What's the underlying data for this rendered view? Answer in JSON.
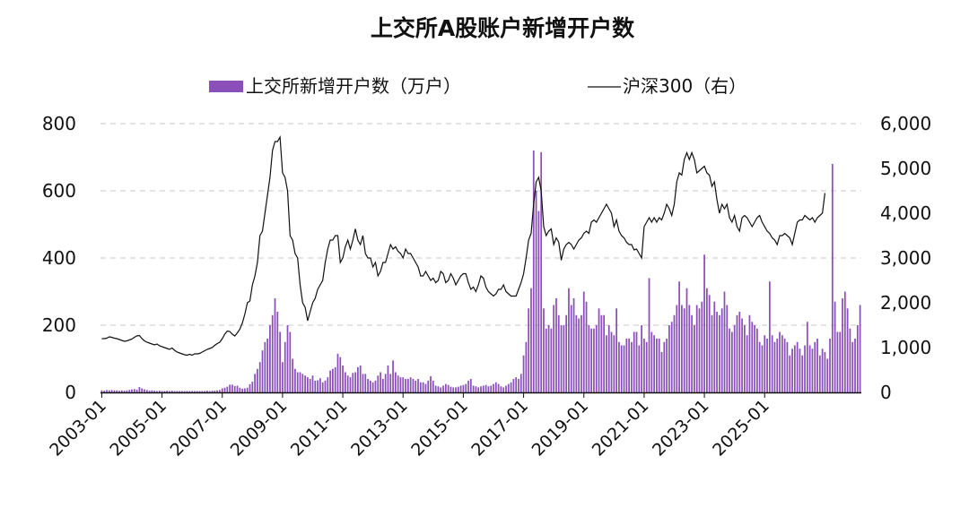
{
  "chart_data": {
    "type": "bar+line",
    "title": "上交所A股账户新增开户数",
    "bar_color": "#8a4fb8",
    "line_color": "#111111",
    "series": [
      {
        "name": "上交所新增开户数（万户）",
        "axis": "left",
        "type": "bar",
        "start": "2003-01",
        "values": [
          6,
          5,
          7,
          6,
          7,
          6,
          6,
          5,
          6,
          5,
          6,
          7,
          9,
          10,
          8,
          16,
          12,
          9,
          7,
          5,
          6,
          5,
          4,
          5,
          4,
          4,
          5,
          4,
          5,
          4,
          4,
          4,
          4,
          4,
          4,
          4,
          4,
          4,
          4,
          4,
          4,
          4,
          5,
          4,
          5,
          5,
          6,
          7,
          12,
          14,
          17,
          23,
          23,
          19,
          20,
          14,
          11,
          12,
          14,
          24,
          32,
          55,
          70,
          90,
          125,
          150,
          160,
          200,
          230,
          280,
          240,
          180,
          90,
          150,
          200,
          180,
          100,
          70,
          60,
          60,
          55,
          50,
          45,
          40,
          50,
          35,
          36,
          42,
          30,
          35,
          45,
          65,
          70,
          75,
          115,
          105,
          80,
          60,
          50,
          45,
          58,
          60,
          75,
          80,
          55,
          55,
          40,
          35,
          30,
          35,
          50,
          60,
          40,
          55,
          80,
          55,
          95,
          60,
          50,
          45,
          45,
          40,
          40,
          45,
          40,
          35,
          40,
          30,
          30,
          25,
          35,
          48,
          35,
          20,
          18,
          15,
          20,
          25,
          22,
          17,
          15,
          15,
          17,
          20,
          22,
          25,
          35,
          40,
          20,
          18,
          15,
          18,
          20,
          22,
          18,
          20,
          25,
          30,
          25,
          18,
          15,
          20,
          25,
          30,
          40,
          45,
          40,
          55,
          110,
          150,
          250,
          310,
          720,
          600,
          540,
          715,
          250,
          190,
          200,
          190,
          260,
          280,
          230,
          200,
          200,
          230,
          310,
          260,
          280,
          230,
          220,
          230,
          300,
          270,
          200,
          190,
          190,
          200,
          250,
          230,
          230,
          170,
          200,
          180,
          170,
          250,
          150,
          140,
          140,
          160,
          160,
          150,
          180,
          180,
          140,
          200,
          160,
          150,
          340,
          180,
          170,
          160,
          160,
          120,
          150,
          160,
          200,
          210,
          230,
          260,
          330,
          260,
          250,
          310,
          260,
          230,
          200,
          260,
          250,
          270,
          410,
          310,
          290,
          230,
          270,
          240,
          230,
          250,
          300,
          260,
          190,
          180,
          200,
          230,
          240,
          220,
          200,
          170,
          230,
          210,
          200,
          190,
          150,
          140,
          170,
          160,
          330,
          170,
          150,
          160,
          180,
          170,
          160,
          150,
          110,
          130,
          140,
          150,
          130,
          110,
          140,
          210,
          140,
          130,
          150,
          160,
          110,
          130,
          120,
          100,
          160,
          680,
          270,
          180,
          180,
          280,
          300,
          250,
          190,
          150,
          160,
          200,
          260
        ]
      },
      {
        "name": "沪深300（右）",
        "axis": "right",
        "type": "line",
        "start": "2003-01",
        "values": [
          1200,
          1200,
          1210,
          1240,
          1230,
          1210,
          1200,
          1180,
          1160,
          1140,
          1150,
          1170,
          1190,
          1230,
          1260,
          1270,
          1200,
          1150,
          1120,
          1100,
          1080,
          1060,
          1080,
          1040,
          1020,
          1000,
          980,
          960,
          990,
          940,
          900,
          880,
          860,
          840,
          830,
          850,
          830,
          860,
          860,
          870,
          900,
          930,
          960,
          980,
          1000,
          1050,
          1090,
          1120,
          1200,
          1300,
          1370,
          1360,
          1300,
          1260,
          1330,
          1410,
          1550,
          1750,
          2000,
          2041,
          2400,
          2600,
          2900,
          3500,
          3600,
          4000,
          4400,
          4800,
          5400,
          5600,
          5600,
          5700,
          4900,
          4800,
          4500,
          3500,
          3400,
          3100,
          3000,
          2400,
          2000,
          1900,
          1600,
          1800,
          2000,
          2100,
          2300,
          2400,
          2500,
          2900,
          3200,
          3400,
          3400,
          3500,
          3500,
          2900,
          3000,
          3250,
          3400,
          3200,
          3400,
          3650,
          3400,
          3300,
          3500,
          3100,
          3000,
          3000,
          2800,
          2900,
          2600,
          2700,
          2900,
          2900,
          3100,
          3300,
          3200,
          3250,
          3150,
          3100,
          3000,
          3200,
          3100,
          3100,
          3000,
          2900,
          2800,
          2600,
          2600,
          2700,
          2600,
          2500,
          2550,
          2450,
          2500,
          2700,
          2650,
          2450,
          2500,
          2650,
          2550,
          2400,
          2500,
          2600,
          2650,
          2650,
          2450,
          2300,
          2350,
          2250,
          2400,
          2600,
          2550,
          2350,
          2250,
          2200,
          2150,
          2200,
          2300,
          2300,
          2400,
          2250,
          2200,
          2150,
          2150,
          2150,
          2300,
          2450,
          2650,
          3000,
          3400,
          3550,
          4200,
          4700,
          4800,
          4500,
          3700,
          3500,
          3600,
          3650,
          3300,
          3450,
          3350,
          2950,
          3200,
          3300,
          3350,
          3300,
          3200,
          3300,
          3400,
          3450,
          3550,
          3600,
          3550,
          3800,
          3850,
          3800,
          3900,
          4000,
          4100,
          4200,
          4100,
          4000,
          3700,
          3850,
          3600,
          3500,
          3450,
          3350,
          3300,
          3300,
          3180,
          3200,
          3100,
          3000,
          3700,
          3800,
          3900,
          3800,
          3900,
          3800,
          3900,
          3850,
          4000,
          4200,
          4100,
          3950,
          4200,
          4700,
          4900,
          4850,
          5200,
          5350,
          5200,
          5350,
          5200,
          4900,
          4950,
          5000,
          5050,
          4900,
          4850,
          4600,
          4700,
          4300,
          4000,
          4200,
          4100,
          4200,
          3900,
          3800,
          3950,
          3700,
          3600,
          3900,
          3950,
          3900,
          3800,
          3700,
          3800,
          3900,
          3950,
          3800,
          3700,
          3600,
          3550,
          3450,
          3400,
          3300,
          3500,
          3500,
          3550,
          3500,
          3450,
          3300,
          3550,
          3800,
          3850,
          3850,
          3950,
          3900,
          3850,
          3900,
          3800,
          3900,
          3950,
          4000,
          4450
        ]
      }
    ],
    "y_left": {
      "min": 0,
      "max": 800,
      "ticks": [
        "0",
        "200",
        "400",
        "600",
        "800"
      ]
    },
    "y_right": {
      "min": 0,
      "max": 6000,
      "ticks": [
        "0",
        "1,000",
        "2,000",
        "3,000",
        "4,000",
        "5,000",
        "6,000"
      ]
    },
    "x_ticks": [
      "2003-01",
      "2005-01",
      "2007-01",
      "2009-01",
      "2011-01",
      "2013-01",
      "2015-01",
      "2017-01",
      "2019-01",
      "2021-01",
      "2023-01",
      "2025-01"
    ],
    "grid": true,
    "legend": {
      "position": "top",
      "bar_label": "上交所新增开户数（万户）",
      "line_label": "沪深300（右）"
    }
  }
}
